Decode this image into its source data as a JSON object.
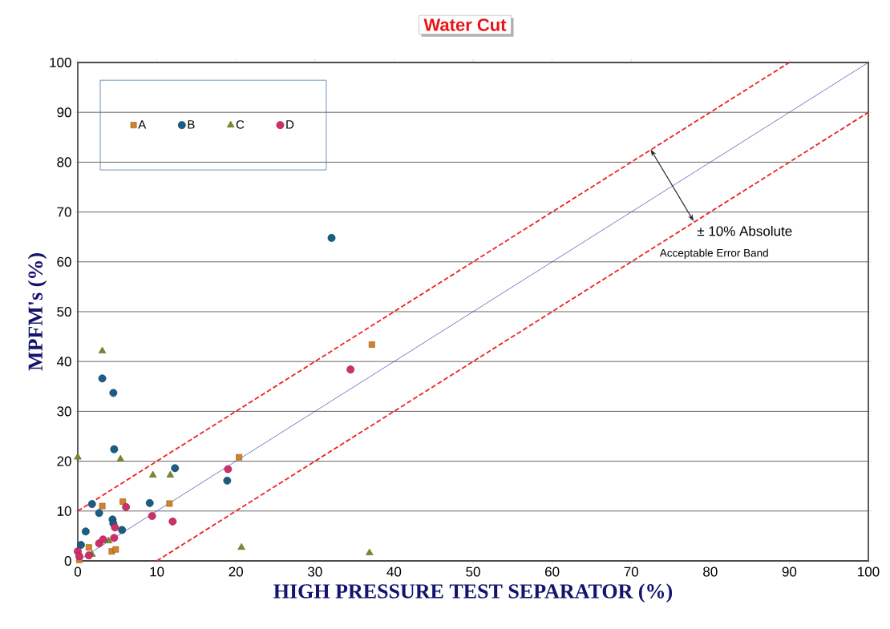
{
  "chart_data": {
    "type": "scatter",
    "title": "Water Cut",
    "xlabel": "HIGH PRESSURE TEST SEPARATOR   (%)",
    "ylabel": "MPFM's  (%)",
    "xlim": [
      0,
      100
    ],
    "ylim": [
      0,
      100
    ],
    "xticks": [
      0,
      10,
      20,
      30,
      40,
      50,
      60,
      70,
      80,
      90,
      100
    ],
    "yticks": [
      0,
      10,
      20,
      30,
      40,
      50,
      60,
      70,
      80,
      90,
      100
    ],
    "grid": "y",
    "legend": "top left",
    "annotations": [
      {
        "text": "± 10% Absolute",
        "x": 78,
        "y": 68
      },
      "Acceptable Error Band"
    ],
    "series": [
      {
        "name": "A",
        "marker": "square",
        "color": "#d4822a",
        "x": [
          0.2,
          1.4,
          3.1,
          4.3,
          4.8,
          5.7,
          11.6,
          20.4,
          37.2
        ],
        "values": [
          0.2,
          2.7,
          11.0,
          1.9,
          2.3,
          11.9,
          11.5,
          20.8,
          43.4
        ]
      },
      {
        "name": "B",
        "marker": "circle",
        "color": "#1a5d85",
        "x": [
          0.4,
          1.0,
          1.8,
          2.7,
          3.1,
          4.5,
          4.4,
          4.5,
          4.6,
          5.6,
          9.1,
          12.3,
          18.9,
          32.1
        ],
        "values": [
          3.2,
          5.9,
          11.4,
          9.6,
          36.6,
          33.7,
          8.3,
          7.5,
          22.4,
          6.2,
          11.6,
          18.6,
          16.1,
          64.8
        ]
      },
      {
        "name": "C",
        "marker": "triangle",
        "color": "#7a8a2a",
        "x": [
          0.0,
          1.8,
          3.9,
          3.1,
          5.4,
          9.5,
          11.7,
          20.7,
          36.9
        ],
        "values": [
          20.8,
          1.3,
          4.0,
          42.1,
          20.4,
          17.2,
          17.2,
          2.7,
          1.6
        ]
      },
      {
        "name": "D",
        "marker": "circle",
        "color": "#d0306a",
        "x": [
          0.0,
          0.2,
          1.4,
          2.7,
          3.2,
          4.6,
          4.7,
          6.1,
          9.4,
          12.0,
          19.0,
          34.5
        ],
        "values": [
          1.9,
          0.9,
          1.1,
          3.5,
          4.3,
          4.6,
          6.7,
          10.8,
          9.0,
          7.9,
          18.4,
          38.4
        ]
      },
      {
        "type": "line",
        "line_style": "dashed",
        "color": "#ee2222",
        "x": [
          0,
          90
        ],
        "values": [
          10,
          100
        ]
      },
      {
        "type": "line",
        "line_style": "solid",
        "color": "#4444aa",
        "x": [
          0,
          100
        ],
        "values": [
          0,
          100
        ]
      },
      {
        "type": "line",
        "line_style": "dashed",
        "color": "#ee2222",
        "x": [
          10,
          100
        ],
        "values": [
          0,
          90
        ]
      }
    ]
  }
}
